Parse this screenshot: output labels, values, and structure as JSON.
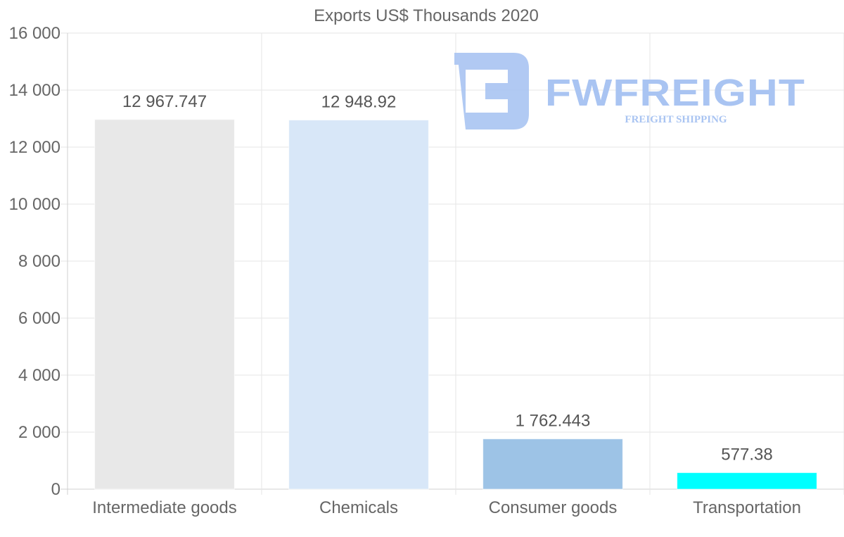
{
  "chart_data": {
    "type": "bar",
    "title": "Exports US$ Thousands 2020",
    "categories": [
      "Intermediate goods",
      "Chemicals",
      "Consumer goods",
      "Transportation"
    ],
    "values": [
      12967.747,
      12948.92,
      1762.443,
      577.38
    ],
    "value_labels": [
      "12 967.747",
      "12 948.92",
      "1 762.443",
      "577.38"
    ],
    "colors": [
      "#e8e8e8",
      "#d8e7f8",
      "#9dc3e6",
      "#00ffff"
    ],
    "ylim": [
      0,
      16000
    ],
    "yticks": [
      0,
      2000,
      4000,
      6000,
      8000,
      10000,
      12000,
      14000,
      16000
    ],
    "ytick_labels": [
      "0",
      "2 000",
      "4 000",
      "6 000",
      "8 000",
      "10 000",
      "12 000",
      "14 000",
      "16 000"
    ],
    "xlabel": "",
    "ylabel": "",
    "grid": true,
    "legend": false
  },
  "watermark": {
    "brand": "FWFREIGHT",
    "tagline": "FREIGHT SHIPPING",
    "color": "#a9c4f2"
  }
}
